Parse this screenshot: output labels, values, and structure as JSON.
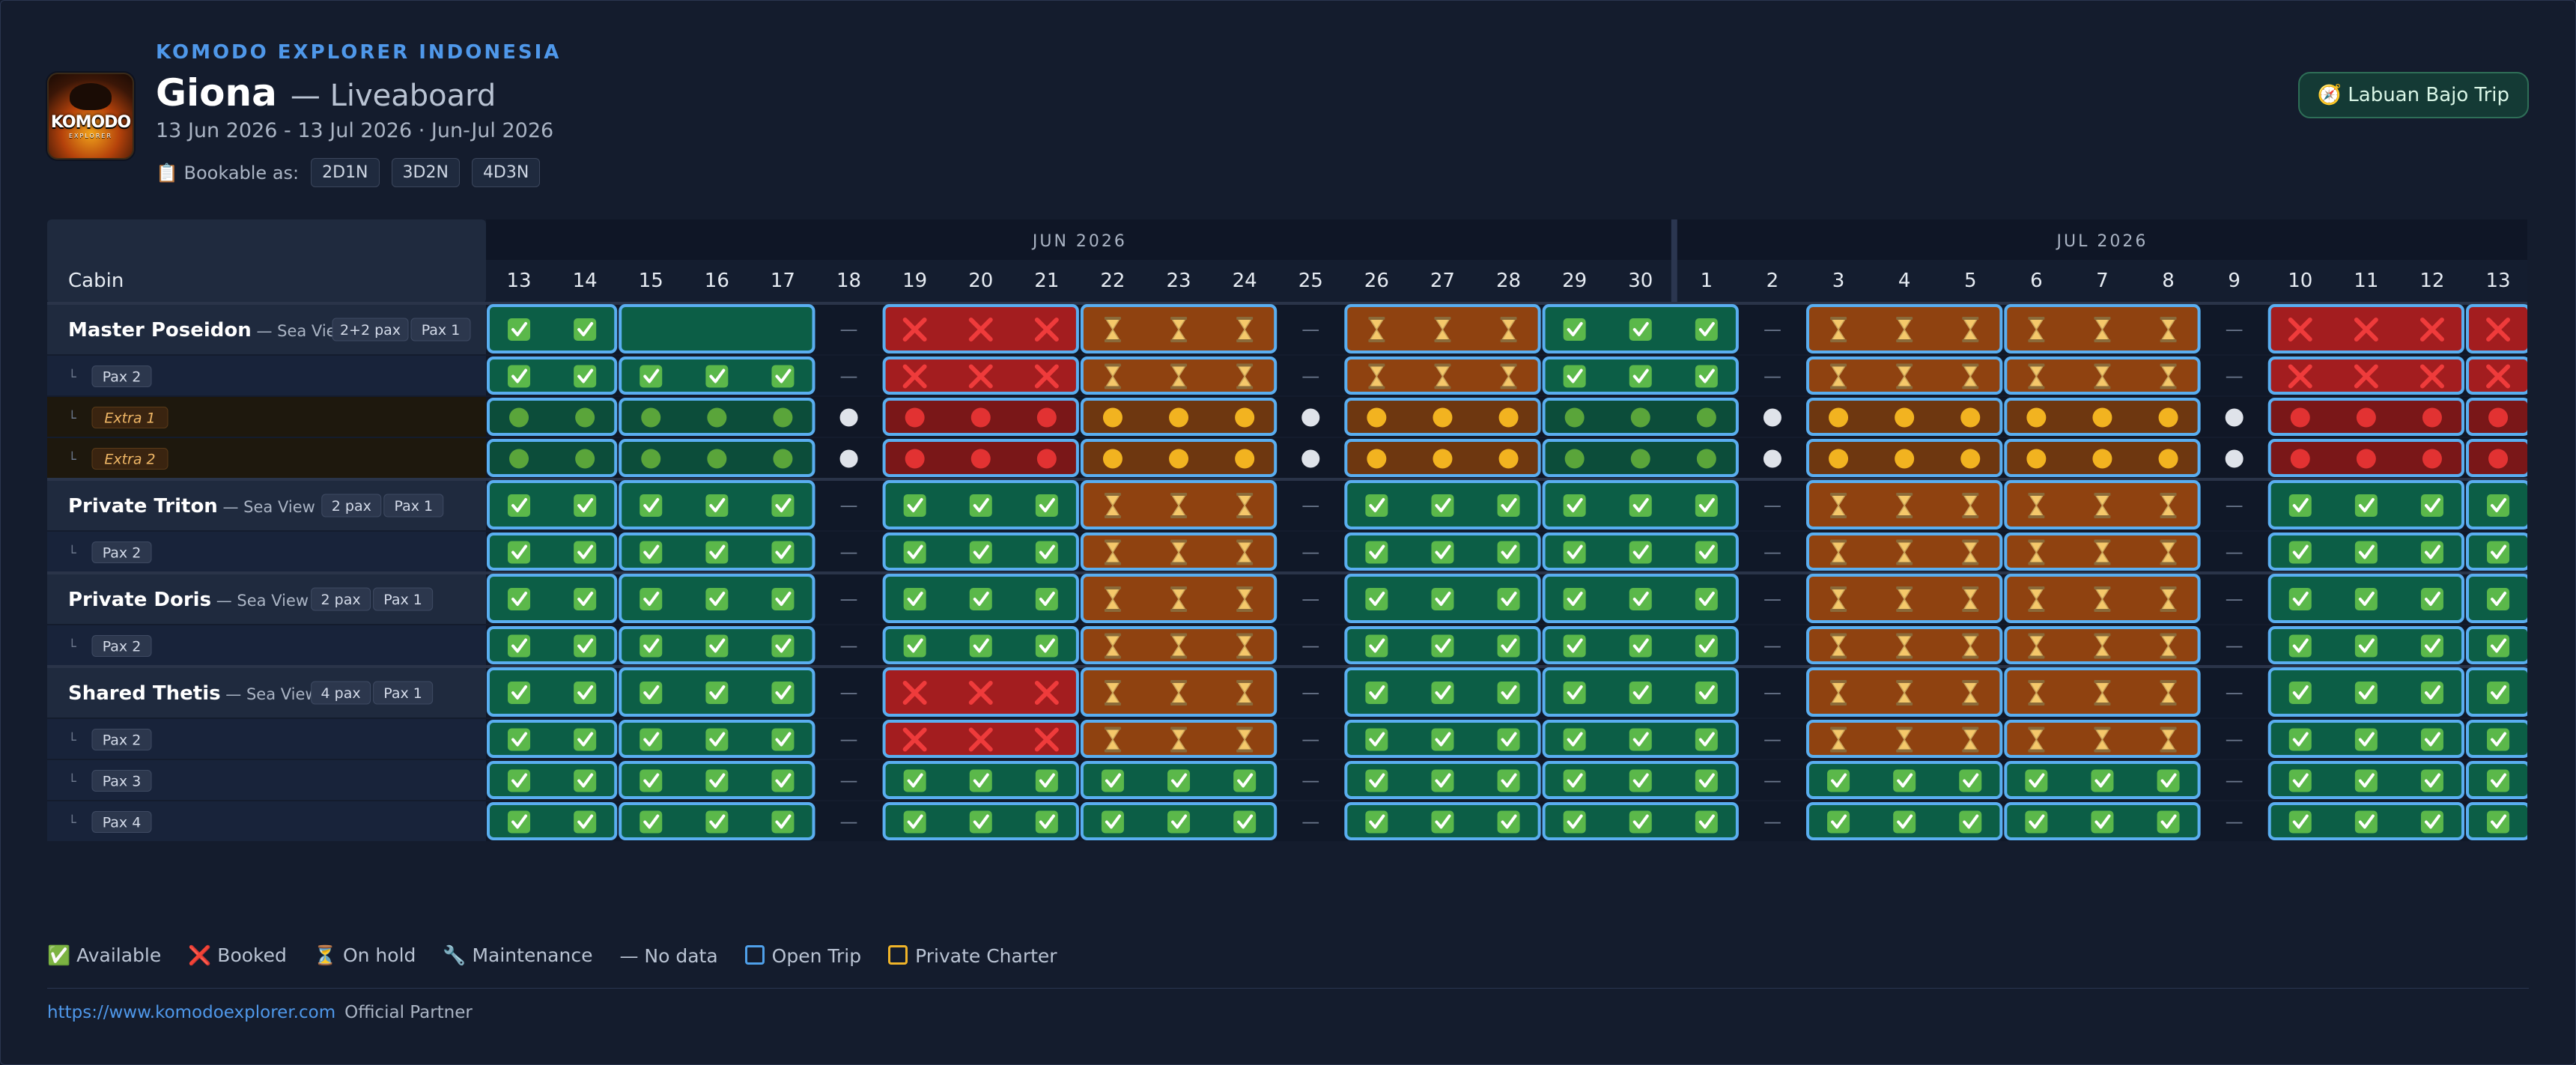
{
  "brand": "KOMODO EXPLORER INDONESIA",
  "vessel": "Giona",
  "vessel_type": "— Liveaboard",
  "date_range": "13 Jun 2026 - 13 Jul 2026 · Jun-Jul 2026",
  "bookable": {
    "label": "📋 Bookable as:",
    "options": [
      "2D1N",
      "3D2N",
      "4D3N"
    ]
  },
  "trip_button": "🧭 Labuan Bajo Trip",
  "logo": {
    "text": "KOMODO",
    "sub": "EXPLORER"
  },
  "table": {
    "cabin_header": "Cabin",
    "months": [
      {
        "label": "JUN 2026",
        "days": 18
      },
      {
        "label": "JUL 2026",
        "days": 13
      }
    ],
    "days": [
      "13",
      "14",
      "15",
      "16",
      "17",
      "18",
      "19",
      "20",
      "21",
      "22",
      "23",
      "24",
      "25",
      "26",
      "27",
      "28",
      "29",
      "30",
      "1",
      "2",
      "3",
      "4",
      "5",
      "6",
      "7",
      "8",
      "9",
      "10",
      "11",
      "12",
      "13"
    ],
    "trips": [
      [
        0,
        1
      ],
      [
        2,
        4
      ],
      [
        6,
        8
      ],
      [
        9,
        11
      ],
      [
        13,
        15
      ],
      [
        16,
        18
      ],
      [
        20,
        22
      ],
      [
        23,
        25
      ],
      [
        27,
        29
      ],
      [
        30,
        30
      ]
    ],
    "rows": [
      {
        "kind": "cabin",
        "name": "Master Poseidon",
        "sub": "— Sea View",
        "badges": [
          "2+2 pax",
          "Pax 1"
        ],
        "cells": "AABBB-XXXHHH-HHHAAA-HHHHHH-XXXX"
      },
      {
        "kind": "pax",
        "label": "Pax 2",
        "cells": "AAAAA-XXXHHH-HHHAAA-HHHHHH-XXXX"
      },
      {
        "kind": "extra",
        "label": "Extra 1",
        "cells": "GGGGGWRRRYYYWYYYGGGWYYYYYYWRRRR"
      },
      {
        "kind": "extra",
        "label": "Extra 2",
        "cells": "GGGGGWRRRYYYWYYYGGGWYYYYYYWRRRR"
      },
      {
        "kind": "cabin",
        "name": "Private Triton",
        "sub": "— Sea View",
        "badges": [
          "2 pax",
          "Pax 1"
        ],
        "cells": "AAAAA-AAAHHH-AAAAAA-HHHHHH-AAAA"
      },
      {
        "kind": "pax",
        "label": "Pax 2",
        "cells": "AAAAA-AAAHHH-AAAAAA-HHHHHH-AAAA"
      },
      {
        "kind": "cabin",
        "name": "Private Doris",
        "sub": "— Sea View",
        "badges": [
          "2 pax",
          "Pax 1"
        ],
        "cells": "AAAAA-AAAHHH-AAAAAA-HHHHHH-AAAA"
      },
      {
        "kind": "pax",
        "label": "Pax 2",
        "cells": "AAAAA-AAAHHH-AAAAAA-HHHHHH-AAAA"
      },
      {
        "kind": "cabin",
        "name": "Shared Thetis",
        "sub": "— Sea View",
        "badges": [
          "4 pax",
          "Pax 1"
        ],
        "cells": "AAAAA-XXXHHH-AAAAAA-HHHHHH-AAAA"
      },
      {
        "kind": "pax",
        "label": "Pax 2",
        "cells": "AAAAA-XXXHHH-AAAAAA-HHHHHH-AAAA"
      },
      {
        "kind": "pax",
        "label": "Pax 3",
        "cells": "AAAAA-AAAAAA-AAAAAA-AAAAAA-AAAA"
      },
      {
        "kind": "pax",
        "label": "Pax 4",
        "cells": "AAAAA-AAAAAA-AAAAAA-AAAAAA-AAAA"
      }
    ]
  },
  "symbols": {
    "A": "✅",
    "X": "❌",
    "H": "⏳",
    "-": "—"
  },
  "legend": [
    {
      "icon": "✅",
      "label": "Available"
    },
    {
      "icon": "❌",
      "label": "Booked"
    },
    {
      "icon": "⏳",
      "label": "On hold"
    },
    {
      "icon": "🔧",
      "label": "Maintenance"
    },
    {
      "icon": "—",
      "label": "No data"
    },
    {
      "swatch": "#4fa0ea",
      "label": "Open Trip"
    },
    {
      "swatch": "#f0b429",
      "label": "Private Charter"
    }
  ],
  "footer": {
    "url": "https://www.komodoexplorer.com",
    "text": "Official Partner"
  },
  "colors": {
    "available": "#0c5e46",
    "booked": "#a31d1f",
    "hold": "#8f4210",
    "trip_border": "#5aaef0",
    "bg": "#141c2d"
  }
}
